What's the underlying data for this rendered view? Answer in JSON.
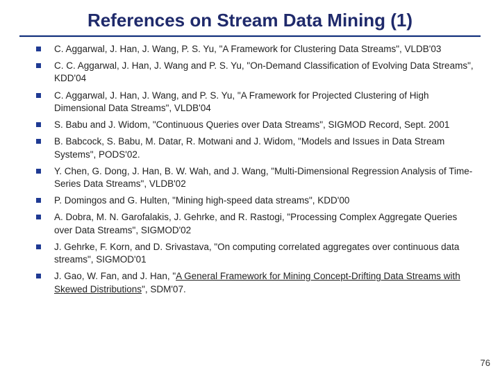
{
  "title": "References on Stream Data Mining (1)",
  "pagenum": "76",
  "colors": {
    "title_color": "#1f2a6b",
    "bullet_color": "#1f3a93",
    "rule_top_color": "#0a2a7a",
    "rule_bottom_color": "#e8e8e8",
    "text_color": "#222222",
    "background_color": "#ffffff"
  },
  "typography": {
    "title_font": "Verdana",
    "title_size_pt": 20,
    "title_weight": "bold",
    "body_font": "Arial",
    "body_size_pt": 10
  },
  "refs": [
    {
      "text": "C. Aggarwal, J. Han, J. Wang, P. S. Yu, \"A Framework for Clustering Data Streams\", VLDB'03"
    },
    {
      "text": "C. C. Aggarwal, J. Han, J. Wang and P. S. Yu, \"On-Demand Classification of Evolving Data Streams\", KDD'04"
    },
    {
      "text": "C. Aggarwal, J. Han, J. Wang, and P. S. Yu, \"A Framework for Projected Clustering of High Dimensional Data Streams\", VLDB'04"
    },
    {
      "text": "S. Babu and J. Widom, \"Continuous Queries over Data Streams\", SIGMOD Record, Sept. 2001"
    },
    {
      "text": "B. Babcock, S. Babu, M. Datar, R. Motwani and J. Widom, \"Models and Issues in Data Stream Systems\", PODS'02."
    },
    {
      "text": "Y. Chen, G. Dong, J. Han, B. W. Wah, and J. Wang, \"Multi-Dimensional Regression Analysis of Time-Series Data Streams\", VLDB'02"
    },
    {
      "text": "P. Domingos and G. Hulten, \"Mining high-speed data streams\", KDD'00"
    },
    {
      "text": "A. Dobra, M. N. Garofalakis, J. Gehrke, and R. Rastogi, \"Processing Complex Aggregate Queries over Data Streams\", SIGMOD'02"
    },
    {
      "text": "J. Gehrke, F. Korn, and D. Srivastava, \"On computing correlated aggregates over continuous data streams\",  SIGMOD'01"
    },
    {
      "pre": "J. Gao, W. Fan, and J. Han, \"",
      "link": "A General Framework for Mining Concept-Drifting Data Streams with Skewed Distributions",
      "post": "\", SDM'07."
    }
  ]
}
